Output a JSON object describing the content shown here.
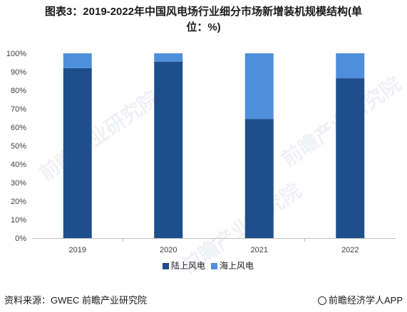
{
  "title": {
    "line1": "图表3：2019-2022年中国风电场行业细分市场新增装机规模结构(单",
    "line2": "位：%)"
  },
  "watermark": {
    "text": "前瞻产业研究院"
  },
  "footer": {
    "source": "资料来源：GWEC 前瞻产业研究院",
    "brand": "前瞻经济学人APP"
  },
  "colors": {
    "onshore": "#1f4e8c",
    "offshore": "#4e8fdc",
    "axis": "#bfbfbf",
    "text": "#404040"
  },
  "chart_data": {
    "type": "bar",
    "stacked": true,
    "categories": [
      "2019",
      "2020",
      "2021",
      "2022"
    ],
    "series": [
      {
        "name": "陆上风电",
        "values": [
          92,
          95.5,
          64.5,
          86.5
        ]
      },
      {
        "name": "海上风电",
        "values": [
          8,
          4.5,
          35.5,
          13.5
        ]
      }
    ],
    "yticks": [
      "0%",
      "10%",
      "20%",
      "30%",
      "40%",
      "50%",
      "60%",
      "70%",
      "80%",
      "90%",
      "100%"
    ],
    "ylim": [
      0,
      100
    ],
    "grid": false,
    "legend": "bottom"
  }
}
